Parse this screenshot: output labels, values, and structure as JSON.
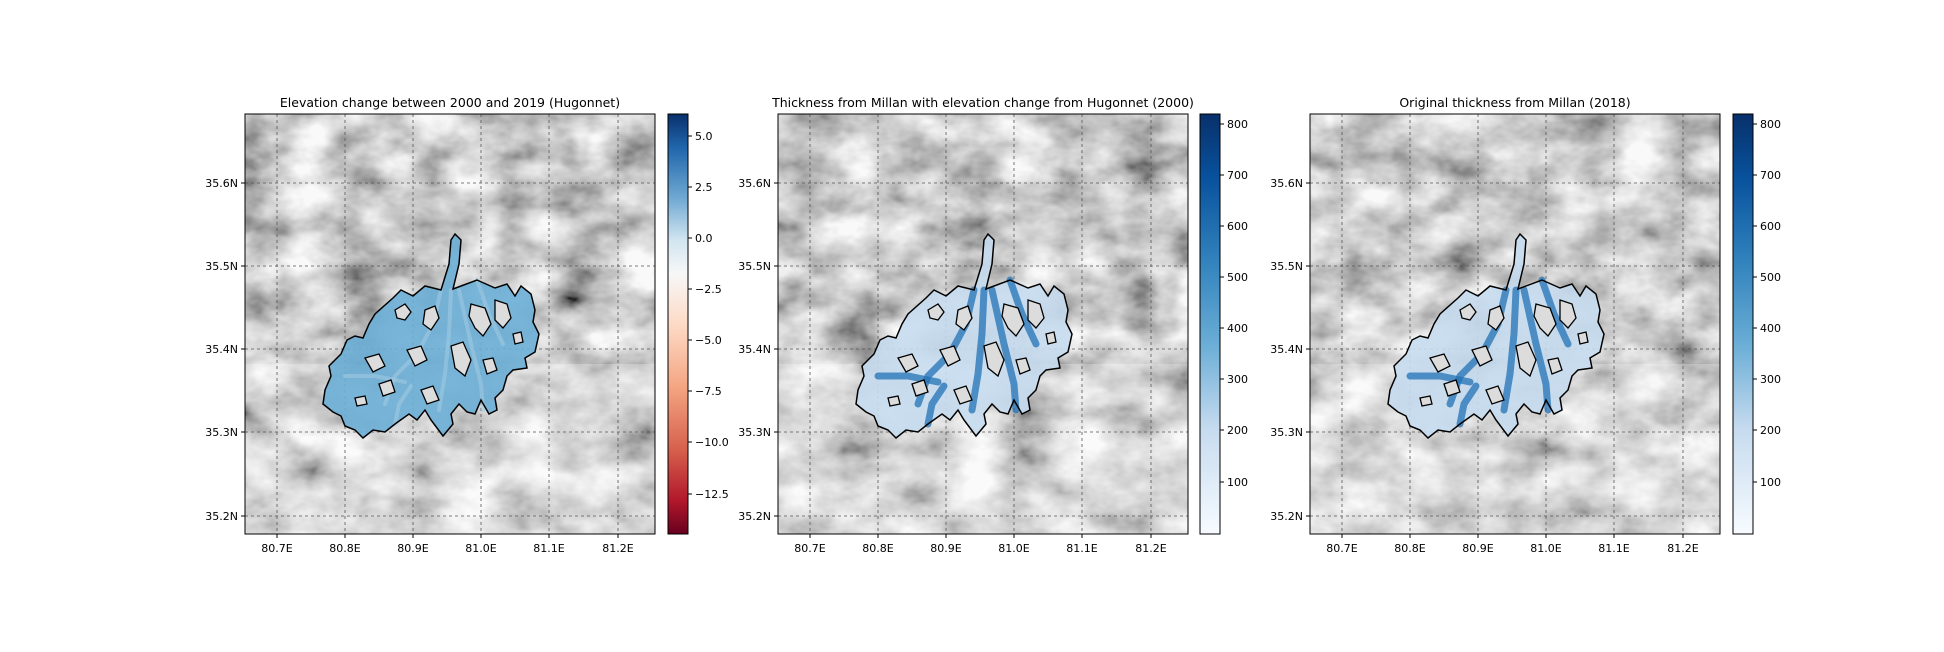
{
  "panels": [
    {
      "title": "Elevation change between 2000 and 2019 (Hugonnet)",
      "xticks": [
        "80.7E",
        "80.8E",
        "80.9E",
        "81.0E",
        "81.1E",
        "81.2E"
      ],
      "yticks": [
        "35.6N",
        "35.5N",
        "35.4N",
        "35.3N",
        "35.2N"
      ],
      "colorbar": {
        "cmap": "RdBu",
        "ticks": [
          "5.0",
          "2.5",
          "0.0",
          "−2.5",
          "−5.0",
          "−7.5",
          "−10.0",
          "−12.5"
        ]
      },
      "glacier_fill": "elevation-change"
    },
    {
      "title": "Thickness from Millan with elevation change from Hugonnet (2000)",
      "xticks": [
        "80.7E",
        "80.8E",
        "80.9E",
        "81.0E",
        "81.1E",
        "81.2E"
      ],
      "yticks": [
        "35.6N",
        "35.5N",
        "35.4N",
        "35.3N",
        "35.2N"
      ],
      "colorbar": {
        "cmap": "Blues",
        "ticks": [
          "800",
          "700",
          "600",
          "500",
          "400",
          "300",
          "200",
          "100"
        ]
      },
      "glacier_fill": "thickness"
    },
    {
      "title": "Original thickness from Millan (2018)",
      "xticks": [
        "80.7E",
        "80.8E",
        "80.9E",
        "81.0E",
        "81.1E",
        "81.2E"
      ],
      "yticks": [
        "35.6N",
        "35.5N",
        "35.4N",
        "35.3N",
        "35.2N"
      ],
      "colorbar": {
        "cmap": "Blues",
        "ticks": [
          "800",
          "700",
          "600",
          "500",
          "400",
          "300",
          "200",
          "100"
        ]
      },
      "glacier_fill": "thickness"
    }
  ],
  "colors": {
    "rdbu_top": "#08306b",
    "rdbu_mid": "#f7f7f7",
    "rdbu_bottom": "#67001f",
    "blues_top": "#08306b",
    "blues_bottom": "#f7fbff",
    "glacier_light": "#9ecae1",
    "glacier_mid": "#6baed6",
    "glacier_dark": "#2171b5",
    "outline": "#000000",
    "gridline": "#555555"
  }
}
